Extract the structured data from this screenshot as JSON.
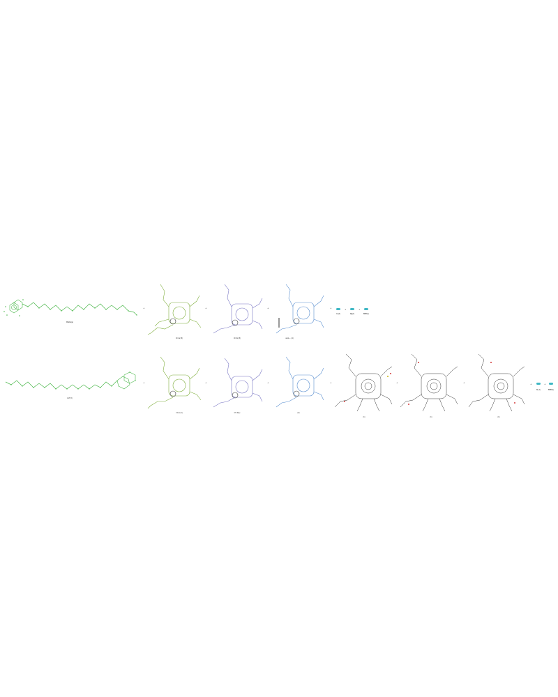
{
  "colors": {
    "green": "#4cb84c",
    "olive": "#7fae3c",
    "purple": "#7a77c4",
    "blue": "#5a8fd0",
    "black": "#333333",
    "cyan": "#3fb7c4",
    "red": "#d43a3a",
    "yellow": "#c8b414"
  },
  "operators": {
    "plus": "+",
    "arrow": "→"
  },
  "row1": {
    "labels": {
      "molecule_1": "MGDG(a)",
      "molecule_2": "Chl a(15)",
      "molecule_3": "Chl b(15)",
      "molecule_4": "apoL... (4)",
      "small_1": "Ca(2)",
      "small_2": "Mg(1)",
      "small_3": "BMB(1)"
    }
  },
  "row2": {
    "labels": {
      "molecule_1": "LUT(3)",
      "molecule_2": "Cla a (1)",
      "molecule_3": "Chl b(1)",
      "molecule_4": "(3)",
      "protein_1": "(1)",
      "protein_2": "(1)",
      "protein_3": "(1)",
      "small_1": "Ni (1)",
      "small_2": "BMB(1)"
    }
  }
}
